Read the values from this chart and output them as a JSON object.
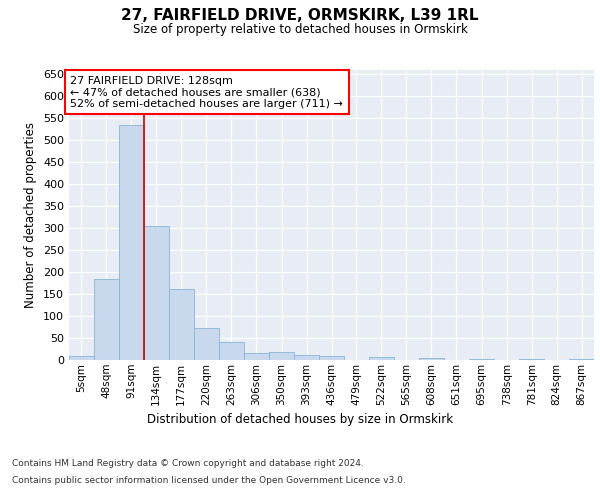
{
  "title1": "27, FAIRFIELD DRIVE, ORMSKIRK, L39 1RL",
  "title2": "Size of property relative to detached houses in Ormskirk",
  "xlabel": "Distribution of detached houses by size in Ormskirk",
  "ylabel": "Number of detached properties",
  "footnote1": "Contains HM Land Registry data © Crown copyright and database right 2024.",
  "footnote2": "Contains public sector information licensed under the Open Government Licence v3.0.",
  "bin_labels": [
    "5sqm",
    "48sqm",
    "91sqm",
    "134sqm",
    "177sqm",
    "220sqm",
    "263sqm",
    "306sqm",
    "350sqm",
    "393sqm",
    "436sqm",
    "479sqm",
    "522sqm",
    "565sqm",
    "608sqm",
    "651sqm",
    "695sqm",
    "738sqm",
    "781sqm",
    "824sqm",
    "867sqm"
  ],
  "bin_starts": [
    5,
    48,
    91,
    134,
    177,
    220,
    263,
    306,
    350,
    393,
    436,
    479,
    522,
    565,
    608,
    651,
    695,
    738,
    781,
    824,
    867
  ],
  "bar_values": [
    8,
    184,
    535,
    304,
    162,
    72,
    40,
    15,
    18,
    11,
    8,
    0,
    6,
    0,
    5,
    0,
    2,
    0,
    3,
    0,
    2
  ],
  "bar_color": "#c8d9ee",
  "bar_edgecolor": "#8ab4d4",
  "vline_x": 134,
  "vline_color": "#cc0000",
  "annotation_line1": "27 FAIRFIELD DRIVE: 128sqm",
  "annotation_line2": "← 47% of detached houses are smaller (638)",
  "annotation_line3": "52% of semi-detached houses are larger (711) →",
  "annotation_box_edgecolor": "red",
  "ylim": [
    0,
    660
  ],
  "yticks": [
    0,
    50,
    100,
    150,
    200,
    250,
    300,
    350,
    400,
    450,
    500,
    550,
    600,
    650
  ],
  "background_color": "#e8edf5",
  "grid_color": "white"
}
